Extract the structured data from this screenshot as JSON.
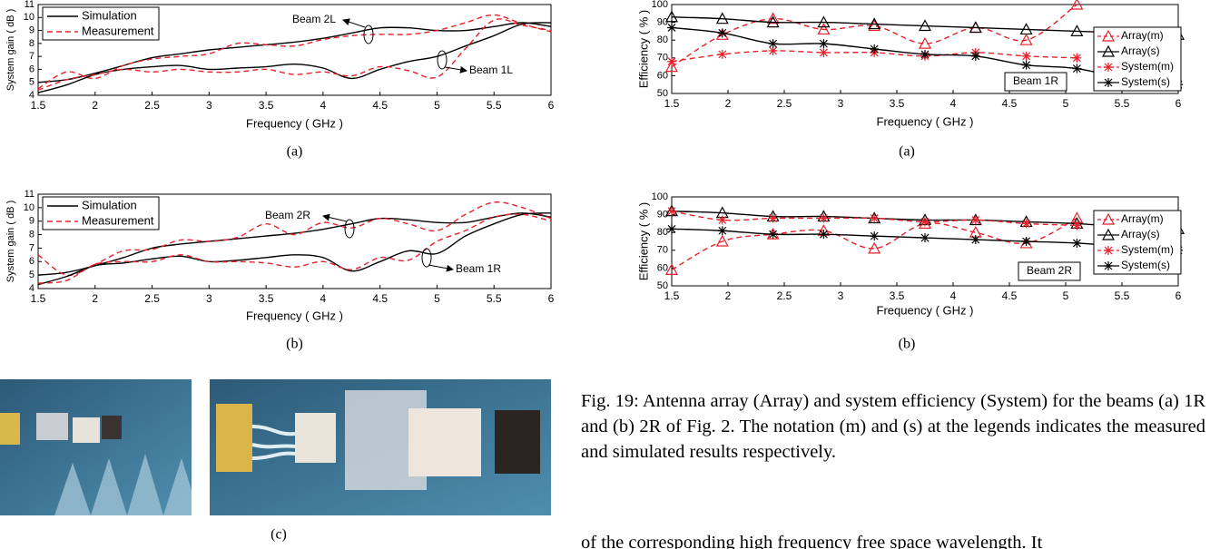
{
  "chart_data": [
    {
      "type": "line",
      "label": "(a)",
      "ylabel": "System gain ( dB )",
      "xlabel": "Frequency ( GHz )",
      "x": [
        1.5,
        1.75,
        2,
        2.25,
        2.5,
        2.75,
        3,
        3.25,
        3.5,
        3.75,
        4,
        4.25,
        4.5,
        4.75,
        5,
        5.25,
        5.5,
        5.75,
        6
      ],
      "xlim": [
        1.5,
        6
      ],
      "ylim": [
        4,
        11
      ],
      "xticks": [
        1.5,
        2,
        2.5,
        3,
        3.5,
        4,
        4.5,
        5,
        5.5,
        6
      ],
      "yticks": [
        4,
        5,
        6,
        7,
        8,
        9,
        10,
        11
      ],
      "legend": "upper left",
      "annotations": [
        "Beam 2L",
        "Beam 1L"
      ],
      "series": [
        {
          "name": "Simulation",
          "color": "#000000",
          "dashed": false,
          "values": [
            5.0,
            5.2,
            5.7,
            6.3,
            6.9,
            7.2,
            7.5,
            7.7,
            7.9,
            8.1,
            8.4,
            8.8,
            9.2,
            9.2,
            9.0,
            9.0,
            9.3,
            9.6,
            9.3
          ]
        },
        {
          "name": "Measurement",
          "color": "#e8202a",
          "dashed": true,
          "values": [
            4.5,
            5.8,
            5.3,
            6.3,
            6.8,
            7.0,
            7.2,
            8.0,
            7.9,
            7.8,
            8.3,
            8.6,
            8.7,
            8.7,
            9.0,
            9.6,
            10.2,
            9.5,
            8.9
          ]
        },
        {
          "color": "#000000",
          "dashed": false,
          "values": [
            4.2,
            4.8,
            5.6,
            6.0,
            6.2,
            6.3,
            6.0,
            6.1,
            6.2,
            6.4,
            6.1,
            5.3,
            6.0,
            6.6,
            7.0,
            7.8,
            8.6,
            9.5,
            9.6
          ]
        },
        {
          "color": "#e8202a",
          "dashed": true,
          "values": [
            4.4,
            5.2,
            5.6,
            6.0,
            5.8,
            6.0,
            5.8,
            5.8,
            6.0,
            5.6,
            5.8,
            5.5,
            6.2,
            5.9,
            5.4,
            7.6,
            9.8,
            9.4,
            9.0
          ]
        }
      ]
    },
    {
      "type": "line",
      "label": "(b)",
      "ylabel": "System gain ( dB )",
      "xlabel": "Frequency ( GHz )",
      "x": [
        1.5,
        1.75,
        2,
        2.25,
        2.5,
        2.75,
        3,
        3.25,
        3.5,
        3.75,
        4,
        4.25,
        4.5,
        4.75,
        5,
        5.25,
        5.5,
        5.75,
        6
      ],
      "xlim": [
        1.5,
        6
      ],
      "ylim": [
        4,
        11
      ],
      "xticks": [
        1.5,
        2,
        2.5,
        3,
        3.5,
        4,
        4.5,
        5,
        5.5,
        6
      ],
      "yticks": [
        4,
        5,
        6,
        7,
        8,
        9,
        10,
        11
      ],
      "legend": "upper left",
      "annotations": [
        "Beam 2R",
        "Beam 1R"
      ],
      "series": [
        {
          "name": "Simulation",
          "color": "#000000",
          "dashed": false,
          "values": [
            5.0,
            5.2,
            5.7,
            6.3,
            7.0,
            7.3,
            7.5,
            7.7,
            7.9,
            8.1,
            8.4,
            8.8,
            9.2,
            9.1,
            8.9,
            8.9,
            9.3,
            9.6,
            9.3
          ]
        },
        {
          "name": "Measurement",
          "color": "#e8202a",
          "dashed": true,
          "values": [
            6.5,
            5.0,
            5.8,
            6.8,
            6.9,
            7.6,
            7.5,
            7.8,
            8.8,
            8.0,
            8.9,
            8.5,
            9.2,
            8.8,
            8.3,
            9.5,
            10.4,
            10.0,
            9.2
          ]
        },
        {
          "color": "#000000",
          "dashed": false,
          "values": [
            4.3,
            4.9,
            5.7,
            5.9,
            6.2,
            6.4,
            6.0,
            6.1,
            6.3,
            6.5,
            6.3,
            5.3,
            6.0,
            6.8,
            6.6,
            7.9,
            8.8,
            9.5,
            9.6
          ]
        },
        {
          "color": "#e8202a",
          "dashed": true,
          "values": [
            4.4,
            4.6,
            5.8,
            6.0,
            6.0,
            6.5,
            6.0,
            6.0,
            5.9,
            5.6,
            6.0,
            5.4,
            6.3,
            6.1,
            7.5,
            8.3,
            9.3,
            9.5,
            9.0
          ]
        }
      ]
    },
    {
      "type": "line",
      "label": "(a)",
      "ylabel": "Efficiency ( % )",
      "xlabel": "Frequency ( GHz )",
      "x": [
        1.5,
        1.95,
        2.4,
        2.85,
        3.3,
        3.75,
        4.2,
        4.65,
        5.1,
        5.55,
        6
      ],
      "xlim": [
        1.5,
        6
      ],
      "ylim": [
        50,
        100
      ],
      "xticks": [
        1.5,
        2,
        2.5,
        3,
        3.5,
        4,
        4.5,
        5,
        5.5,
        6
      ],
      "yticks": [
        50,
        60,
        70,
        80,
        90,
        100
      ],
      "legend": "right",
      "annotations": [
        "Beam 1R"
      ],
      "series": [
        {
          "name": "Array(m)",
          "color": "#e8202a",
          "dashed": true,
          "marker": "triangle",
          "values": [
            65,
            83,
            92,
            86,
            88,
            78,
            87,
            80,
            100,
            null,
            null
          ]
        },
        {
          "name": "Array(s)",
          "color": "#000000",
          "dashed": false,
          "marker": "triangle",
          "values": [
            93,
            92,
            90,
            90,
            89,
            88,
            87,
            86,
            85,
            84,
            83
          ]
        },
        {
          "name": "System(m)",
          "color": "#e8202a",
          "dashed": true,
          "marker": "asterisk",
          "values": [
            68,
            72,
            74,
            73,
            73,
            71,
            73,
            71,
            70,
            null,
            null
          ]
        },
        {
          "name": "System(s)",
          "color": "#000000",
          "dashed": false,
          "marker": "asterisk",
          "values": [
            87,
            84,
            78,
            78,
            75,
            72,
            71,
            66,
            64,
            58,
            55
          ]
        }
      ]
    },
    {
      "type": "line",
      "label": "(b)",
      "ylabel": "Efficiency ( % )",
      "xlabel": "Frequency ( GHz )",
      "x": [
        1.5,
        1.95,
        2.4,
        2.85,
        3.3,
        3.75,
        4.2,
        4.65,
        5.1,
        5.55,
        6
      ],
      "xlim": [
        1.5,
        6
      ],
      "ylim": [
        50,
        100
      ],
      "xticks": [
        1.5,
        2,
        2.5,
        3,
        3.5,
        4,
        4.5,
        5,
        5.5,
        6
      ],
      "yticks": [
        50,
        60,
        70,
        80,
        90,
        100
      ],
      "legend": "right",
      "annotations": [
        "Beam 2R"
      ],
      "series": [
        {
          "name": "Array(m)",
          "color": "#e8202a",
          "dashed": true,
          "marker": "triangle",
          "values": [
            59,
            75,
            79,
            81,
            71,
            85,
            80,
            74,
            88,
            null,
            null
          ]
        },
        {
          "name": "Array(s)",
          "color": "#000000",
          "dashed": false,
          "marker": "triangle",
          "values": [
            92,
            91,
            89,
            89,
            88,
            87,
            87,
            86,
            85,
            83,
            82
          ]
        },
        {
          "name": "System(m)",
          "color": "#e8202a",
          "dashed": true,
          "marker": "asterisk",
          "values": [
            92,
            87,
            88,
            88,
            88,
            86,
            87,
            85,
            84,
            null,
            null
          ]
        },
        {
          "name": "System(s)",
          "color": "#000000",
          "dashed": false,
          "marker": "asterisk",
          "values": [
            82,
            81,
            79,
            79,
            78,
            77,
            76,
            75,
            74,
            72,
            70
          ]
        }
      ]
    }
  ],
  "photo_caption": "(c)",
  "caption": "Fig. 19: Antenna array (Array) and system efficiency (System) for the beams (a) 1R and (b) 2R of Fig. 2. The notation (m) and (s) at the legends indicates the measured and simulated results respectively.",
  "body_text": "of the corresponding high frequency free space wavelength. It"
}
